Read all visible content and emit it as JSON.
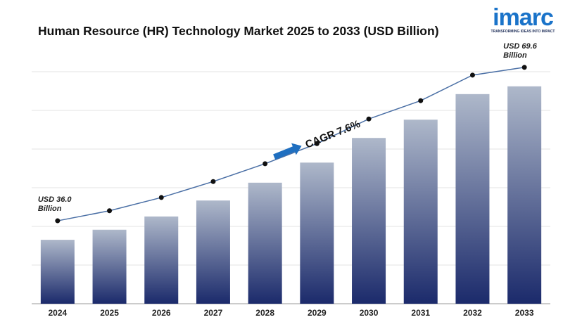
{
  "chart_data": {
    "type": "bar",
    "title": "Human Resource (HR) Technology Market 2025 to 2033 (USD Billion)",
    "categories": [
      "2024",
      "2025",
      "2026",
      "2027",
      "2028",
      "2029",
      "2030",
      "2031",
      "2032",
      "2033"
    ],
    "values": [
      36.0,
      38.2,
      41.1,
      44.6,
      48.5,
      52.9,
      58.3,
      62.3,
      67.9,
      69.6
    ],
    "value_labels": [
      "USD 36.0 Billion",
      null,
      null,
      null,
      null,
      null,
      null,
      null,
      null,
      "USD 69.6 Billion"
    ],
    "annotation": "CAGR 7.6%",
    "ylim": [
      22,
      72.8
    ],
    "grid": true,
    "color": "#1b2a6b",
    "line_color": "#4a6fa5"
  },
  "logo": {
    "name": "imarc",
    "tagline": "TRANSFORMING IDEAS INTO IMPACT"
  }
}
